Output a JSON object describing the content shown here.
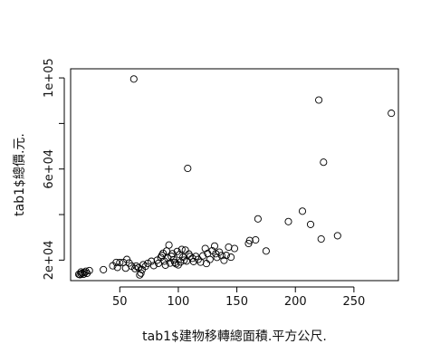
{
  "chart_data": {
    "type": "scatter",
    "xlabel": "tab1$建物移轉總面積.平方公尺.",
    "ylabel": "tab1$總價.元.",
    "xlim": [
      8,
      288
    ],
    "ylim": [
      11000,
      104000
    ],
    "x_ticks": [
      50,
      100,
      150,
      200,
      250
    ],
    "x_tick_labels": [
      "50",
      "100",
      "150",
      "200",
      "250"
    ],
    "y_ticks": [
      20000,
      40000,
      60000,
      80000,
      100000
    ],
    "y_tick_labels": [
      "2e+04",
      "",
      "6e+04",
      "",
      "1e+05"
    ],
    "marker": "open-circle",
    "marker_color": "#000000",
    "grid": false,
    "legend": false,
    "points": [
      [
        15,
        13800
      ],
      [
        16,
        13600
      ],
      [
        17,
        14000
      ],
      [
        18,
        14300
      ],
      [
        19,
        13800
      ],
      [
        17,
        14800
      ],
      [
        20,
        14500
      ],
      [
        21,
        15100
      ],
      [
        24,
        15400
      ],
      [
        22,
        14200
      ],
      [
        36,
        15800
      ],
      [
        44,
        17500
      ],
      [
        47,
        19000
      ],
      [
        50,
        18900
      ],
      [
        48,
        16800
      ],
      [
        53,
        19000
      ],
      [
        55,
        16500
      ],
      [
        56,
        20300
      ],
      [
        58,
        18700
      ],
      [
        60,
        17400
      ],
      [
        62,
        99500
      ],
      [
        63,
        16300
      ],
      [
        64,
        17400
      ],
      [
        66,
        16700
      ],
      [
        67,
        13500
      ],
      [
        68,
        14300
      ],
      [
        69,
        15800
      ],
      [
        70,
        18000
      ],
      [
        72,
        17300
      ],
      [
        74,
        18600
      ],
      [
        77,
        19500
      ],
      [
        79,
        17600
      ],
      [
        82,
        20000
      ],
      [
        83,
        18600
      ],
      [
        85,
        21200
      ],
      [
        86,
        22100
      ],
      [
        87,
        23000
      ],
      [
        88,
        19600
      ],
      [
        89,
        17800
      ],
      [
        90,
        24000
      ],
      [
        91,
        20800
      ],
      [
        92,
        26600
      ],
      [
        93,
        18700
      ],
      [
        94,
        21700
      ],
      [
        95,
        22800
      ],
      [
        96,
        20200
      ],
      [
        97,
        19000
      ],
      [
        98,
        18400
      ],
      [
        99,
        23800
      ],
      [
        100,
        17900
      ],
      [
        101,
        22400
      ],
      [
        102,
        19200
      ],
      [
        103,
        24700
      ],
      [
        104,
        21300
      ],
      [
        105,
        20000
      ],
      [
        106,
        24400
      ],
      [
        107,
        19600
      ],
      [
        108,
        60300
      ],
      [
        109,
        22700
      ],
      [
        110,
        21600
      ],
      [
        112,
        20800
      ],
      [
        113,
        19400
      ],
      [
        115,
        21600
      ],
      [
        117,
        20300
      ],
      [
        119,
        19100
      ],
      [
        121,
        21900
      ],
      [
        123,
        25100
      ],
      [
        124,
        18500
      ],
      [
        125,
        22900
      ],
      [
        127,
        20300
      ],
      [
        129,
        24100
      ],
      [
        131,
        26200
      ],
      [
        132,
        22800
      ],
      [
        133,
        21200
      ],
      [
        135,
        23500
      ],
      [
        137,
        22000
      ],
      [
        139,
        19900
      ],
      [
        141,
        22100
      ],
      [
        143,
        25700
      ],
      [
        145,
        21300
      ],
      [
        148,
        25100
      ],
      [
        160,
        27300
      ],
      [
        161,
        28600
      ],
      [
        166,
        28900
      ],
      [
        168,
        38100
      ],
      [
        175,
        24000
      ],
      [
        194,
        36900
      ],
      [
        206,
        41500
      ],
      [
        213,
        35700
      ],
      [
        220,
        90300
      ],
      [
        222,
        29300
      ],
      [
        224,
        63000
      ],
      [
        236,
        30700
      ],
      [
        282,
        84500
      ]
    ]
  }
}
